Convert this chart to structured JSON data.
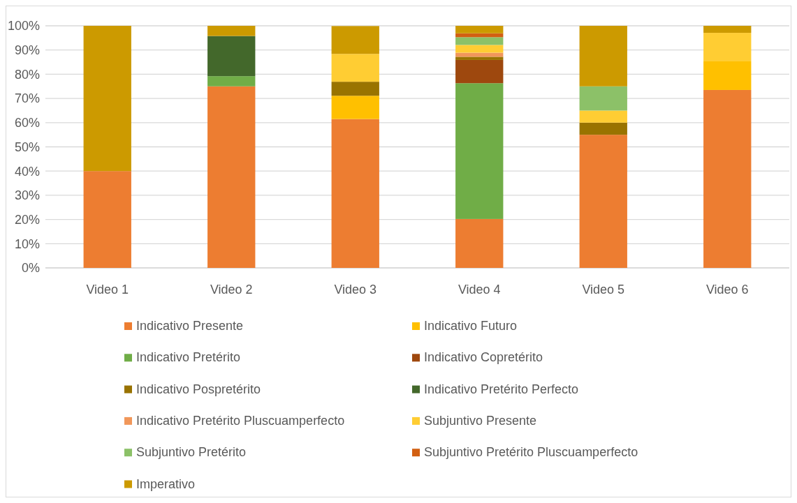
{
  "chart_data": {
    "type": "bar",
    "stacked": true,
    "categories": [
      "Video 1",
      "Video 2",
      "Video 3",
      "Video 4",
      "Video 5",
      "Video 6"
    ],
    "series": [
      {
        "name": "Indicativo Presente",
        "color": "#ed7d31",
        "values": [
          40,
          75,
          61.5,
          20.2,
          55,
          73.5
        ]
      },
      {
        "name": "Indicativo Futuro",
        "color": "#ffc000",
        "values": [
          0,
          0,
          9.6,
          0,
          0,
          11.8
        ]
      },
      {
        "name": "Indicativo Pretérito",
        "color": "#70ad47",
        "values": [
          0,
          4.2,
          0,
          56.1,
          0,
          0
        ]
      },
      {
        "name": "Indicativo Copretérito",
        "color": "#9e480e",
        "values": [
          0,
          0,
          0,
          9.6,
          0,
          0
        ]
      },
      {
        "name": "Indicativo Pospretérito",
        "color": "#997300",
        "values": [
          0,
          0,
          5.8,
          1.3,
          5,
          0
        ]
      },
      {
        "name": "Indicativo Pretérito Perfecto",
        "color": "#43682b",
        "values": [
          0,
          16.6,
          0,
          0,
          0,
          0
        ]
      },
      {
        "name": "Indicativo Pretérito Pluscuamperfecto",
        "color": "#f1975a",
        "values": [
          0,
          0,
          0,
          1.7,
          0,
          0
        ]
      },
      {
        "name": "Subjuntivo Presente",
        "color": "#ffcd33",
        "values": [
          0,
          0,
          11.5,
          3.2,
          5,
          11.8
        ]
      },
      {
        "name": "Subjuntivo Pretérito",
        "color": "#8cc168",
        "values": [
          0,
          0,
          0,
          3.2,
          10,
          0
        ]
      },
      {
        "name": "Subjuntivo Pretérito Pluscuamperfecto",
        "color": "#d26012",
        "values": [
          0,
          0,
          0,
          1.6,
          0,
          0
        ]
      },
      {
        "name": "Imperativo",
        "color": "#cc9a00",
        "values": [
          60,
          4.2,
          11.5,
          3.1,
          25,
          2.9
        ]
      }
    ],
    "ylim": [
      0,
      100
    ],
    "yticks": [
      {
        "value": 0,
        "label": "0%"
      },
      {
        "value": 10,
        "label": "10%"
      },
      {
        "value": 20,
        "label": "20%"
      },
      {
        "value": 30,
        "label": "30%"
      },
      {
        "value": 40,
        "label": "40%"
      },
      {
        "value": 50,
        "label": "50%"
      },
      {
        "value": 60,
        "label": "60%"
      },
      {
        "value": 70,
        "label": "70%"
      },
      {
        "value": 80,
        "label": "80%"
      },
      {
        "value": 90,
        "label": "90%"
      },
      {
        "value": 100,
        "label": "100%"
      }
    ],
    "grid": "y",
    "legend": "bottom"
  }
}
